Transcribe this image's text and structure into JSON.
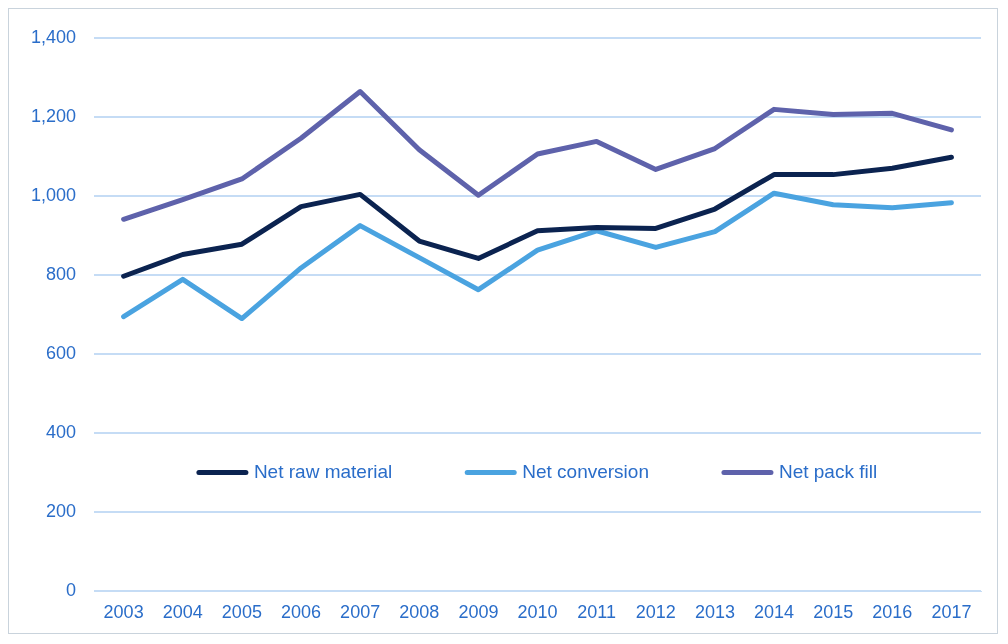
{
  "chart_data": {
    "type": "line",
    "categories": [
      "2003",
      "2004",
      "2005",
      "2006",
      "2007",
      "2008",
      "2009",
      "2010",
      "2011",
      "2012",
      "2013",
      "2014",
      "2015",
      "2016",
      "2017"
    ],
    "series": [
      {
        "name": "Net raw material",
        "color": "#0b2350",
        "values": [
          797,
          852,
          878,
          973,
          1004,
          886,
          842,
          912,
          920,
          918,
          967,
          1054,
          1054,
          1070,
          1098
        ]
      },
      {
        "name": "Net conversion",
        "color": "#4aa3e0",
        "values": [
          695,
          789,
          690,
          818,
          925,
          844,
          763,
          863,
          912,
          870,
          910,
          1007,
          978,
          970,
          983
        ]
      },
      {
        "name": "Net pack fill",
        "color": "#5e62ab",
        "values": [
          941,
          991,
          1043,
          1146,
          1264,
          1117,
          1002,
          1106,
          1138,
          1067,
          1120,
          1219,
          1206,
          1209,
          1167
        ]
      }
    ],
    "ylim": [
      0,
      1400
    ],
    "yticks": [
      0,
      {
        "value": 200,
        "label": "200"
      },
      {
        "value": 400,
        "label": "400"
      },
      {
        "value": 600,
        "label": "600"
      },
      {
        "value": 800,
        "label": "800"
      },
      {
        "value": 1000,
        "label": "1,000"
      },
      {
        "value": 1200,
        "label": "1,200"
      },
      {
        "value": 1400,
        "label": "1,400"
      }
    ],
    "grid": "y",
    "legend": "bottom",
    "marker": "none",
    "line_style": "solid"
  }
}
